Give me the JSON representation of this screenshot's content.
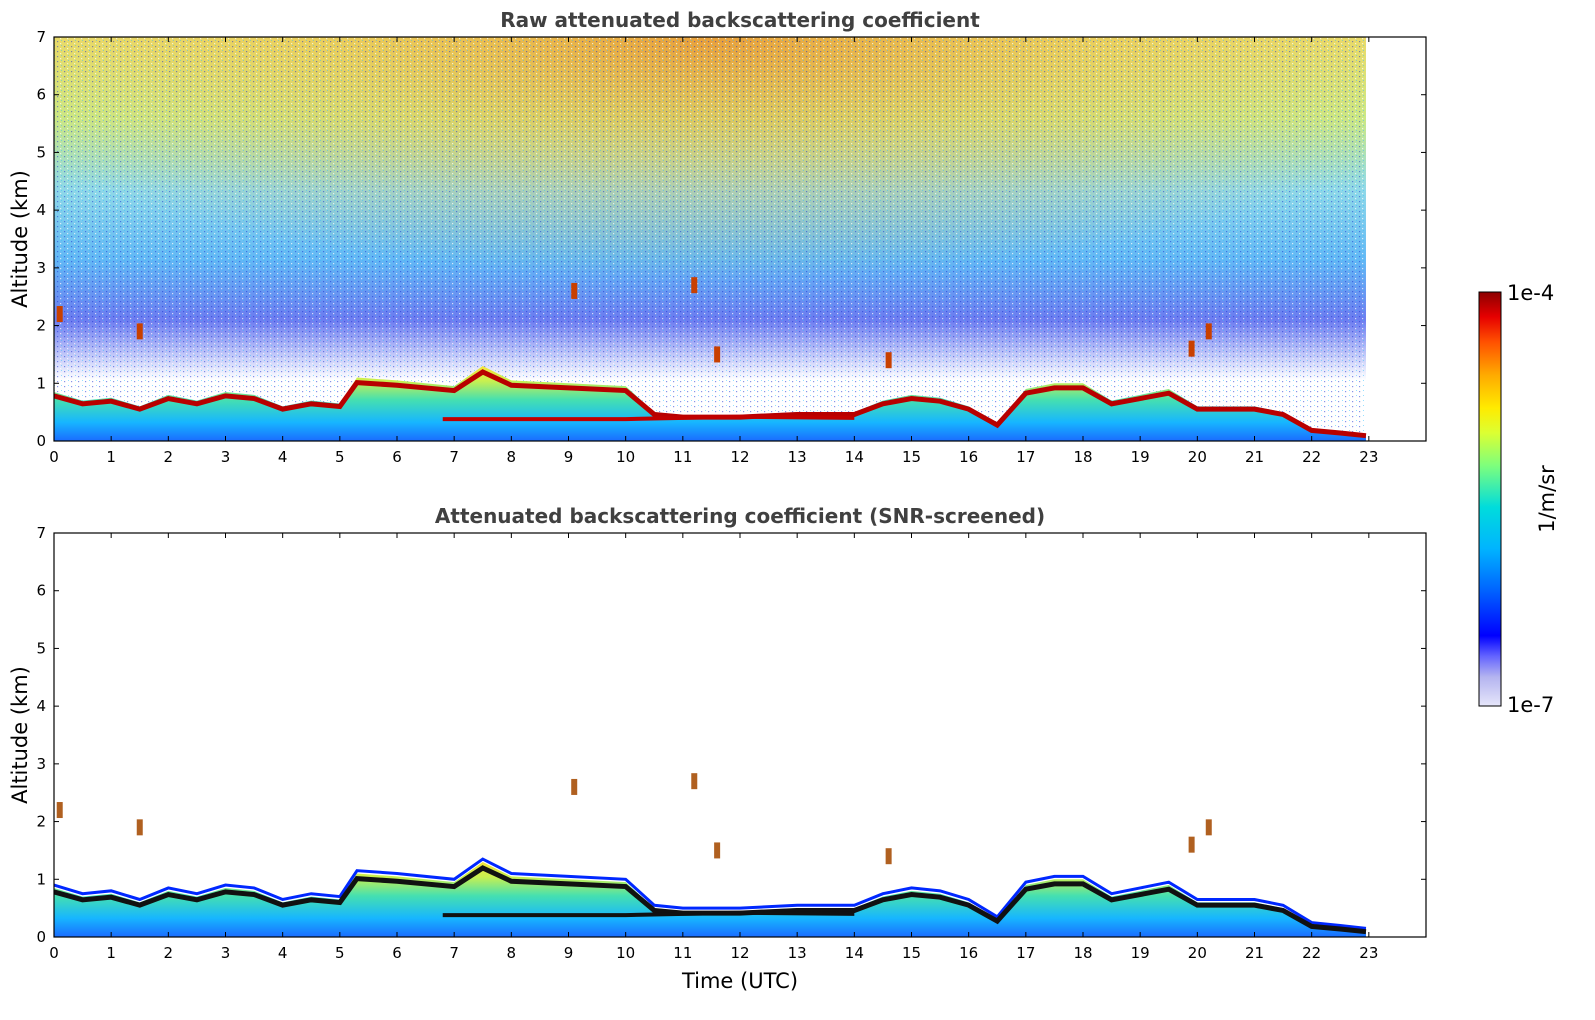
{
  "chart_data": [
    {
      "type": "heatmap",
      "title": "Raw attenuated backscattering coefficient",
      "xlabel": "",
      "ylabel": "Altitude (km)",
      "xlim": [
        0,
        24
      ],
      "ylim": [
        0,
        7
      ],
      "xticks": [
        "0",
        "1",
        "2",
        "3",
        "4",
        "5",
        "6",
        "7",
        "8",
        "9",
        "10",
        "11",
        "12",
        "13",
        "14",
        "15",
        "16",
        "17",
        "18",
        "19",
        "20",
        "21",
        "22",
        "23"
      ],
      "yticks": [
        "0",
        "1",
        "2",
        "3",
        "4",
        "5",
        "6",
        "7"
      ],
      "data_extent_hours": [
        0,
        22.95
      ],
      "screened": false,
      "layers": {
        "boundary_layer_top_km": [
          [
            0,
            0.85
          ],
          [
            0.5,
            0.7
          ],
          [
            1,
            0.75
          ],
          [
            1.5,
            0.6
          ],
          [
            2,
            0.8
          ],
          [
            2.5,
            0.7
          ],
          [
            3,
            0.85
          ],
          [
            3.5,
            0.8
          ],
          [
            4,
            0.6
          ],
          [
            4.5,
            0.7
          ],
          [
            5,
            0.65
          ],
          [
            5.3,
            1.1
          ],
          [
            6,
            1.05
          ],
          [
            7,
            0.95
          ],
          [
            7.5,
            1.3
          ],
          [
            8,
            1.05
          ],
          [
            9,
            1.0
          ],
          [
            10,
            0.95
          ],
          [
            10.5,
            0.5
          ],
          [
            11,
            0.45
          ],
          [
            12,
            0.45
          ],
          [
            13,
            0.5
          ],
          [
            14,
            0.5
          ],
          [
            14.5,
            0.7
          ],
          [
            15,
            0.8
          ],
          [
            15.5,
            0.75
          ],
          [
            16,
            0.6
          ],
          [
            16.5,
            0.3
          ],
          [
            17,
            0.9
          ],
          [
            17.5,
            1.0
          ],
          [
            18,
            1.0
          ],
          [
            18.5,
            0.7
          ],
          [
            19,
            0.8
          ],
          [
            19.5,
            0.9
          ],
          [
            20,
            0.6
          ],
          [
            20.5,
            0.6
          ],
          [
            21,
            0.6
          ],
          [
            21.5,
            0.5
          ],
          [
            22,
            0.2
          ],
          [
            22.5,
            0.15
          ],
          [
            22.95,
            0.1
          ]
        ],
        "elevated_features_km": [
          {
            "x": 0.1,
            "y": 2.2
          },
          {
            "x": 1.5,
            "y": 1.9
          },
          {
            "x": 9.1,
            "y": 2.6
          },
          {
            "x": 11.2,
            "y": 2.7
          },
          {
            "x": 11.6,
            "y": 1.5
          },
          {
            "x": 14.6,
            "y": 1.4
          },
          {
            "x": 19.9,
            "y": 1.6
          },
          {
            "x": 20.2,
            "y": 1.9
          }
        ]
      }
    },
    {
      "type": "heatmap",
      "title": "Attenuated backscattering coefficient (SNR-screened)",
      "xlabel": "Time (UTC)",
      "ylabel": "Altitude (km)",
      "xlim": [
        0,
        24
      ],
      "ylim": [
        0,
        7
      ],
      "xticks": [
        "0",
        "1",
        "2",
        "3",
        "4",
        "5",
        "6",
        "7",
        "8",
        "9",
        "10",
        "11",
        "12",
        "13",
        "14",
        "15",
        "16",
        "17",
        "18",
        "19",
        "20",
        "21",
        "22",
        "23"
      ],
      "yticks": [
        "0",
        "1",
        "2",
        "3",
        "4",
        "5",
        "6",
        "7"
      ],
      "data_extent_hours": [
        0,
        22.95
      ],
      "screened": true
    }
  ],
  "colorbar": {
    "label": "1/m/sr",
    "max_label": "1e-4",
    "min_label": "1e-7",
    "scale": "log",
    "range": [
      1e-07,
      0.0001
    ],
    "colors": [
      "#e6e6fa",
      "#b4b4f0",
      "#6464ff",
      "#0000ff",
      "#0064ff",
      "#00b4ff",
      "#00dcdc",
      "#7dff7d",
      "#dcff32",
      "#ffeb00",
      "#ffaa00",
      "#ff5000",
      "#e60000",
      "#8c0000"
    ]
  }
}
